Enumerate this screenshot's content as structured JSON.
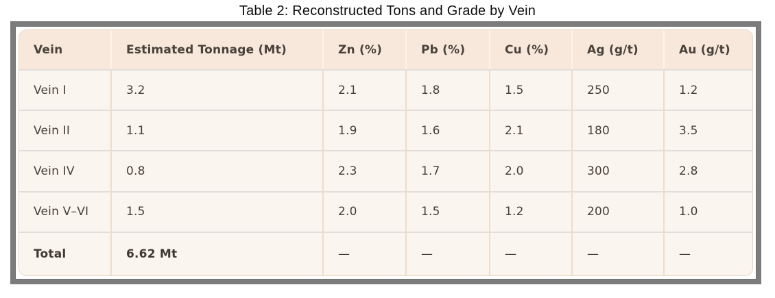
{
  "chart_data": {
    "type": "table",
    "title": "Table 2: Reconstructed Tons and Grade by Vein",
    "columns": [
      "Vein",
      "Estimated Tonnage (Mt)",
      "Zn (%)",
      "Pb (%)",
      "Cu (%)",
      "Ag (g/t)",
      "Au (g/t)"
    ],
    "rows": [
      {
        "cells": [
          "Vein I",
          "3.2",
          "2.1",
          "1.8",
          "1.5",
          "250",
          "1.2"
        ],
        "is_total": false
      },
      {
        "cells": [
          "Vein II",
          "1.1",
          "1.9",
          "1.6",
          "2.1",
          "180",
          "3.5"
        ],
        "is_total": false
      },
      {
        "cells": [
          "Vein IV",
          "0.8",
          "2.3",
          "1.7",
          "2.0",
          "300",
          "2.8"
        ],
        "is_total": false
      },
      {
        "cells": [
          "Vein V–VI",
          "1.5",
          "2.0",
          "1.5",
          "1.2",
          "200",
          "1.0"
        ],
        "is_total": false
      },
      {
        "cells": [
          "Total",
          "6.62 Mt",
          "—",
          "—",
          "—",
          "—",
          "—"
        ],
        "is_total": true
      }
    ],
    "layout_hints": {
      "total_row_bold_columns": [
        "Vein",
        "Estimated Tonnage (Mt)"
      ],
      "grid": "on",
      "header_position": "top"
    }
  },
  "colors": {
    "frame_border": "#7c7c7c",
    "header_background": "#f8e8db",
    "body_background": "#fbf5ef",
    "header_text": "#49423b",
    "body_text": "#453f39",
    "row_divider": "#e2deda",
    "column_divider_body": "#eeddcb",
    "column_divider_header": "#fdf3e9",
    "card_border": "#e8d3c0",
    "title_text": "#0d0d0d"
  }
}
